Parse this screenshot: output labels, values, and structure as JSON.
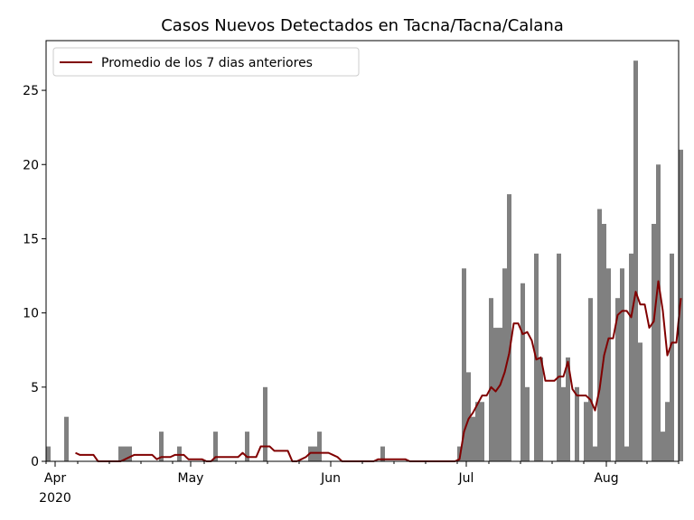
{
  "chart_data": {
    "type": "bar",
    "title": "Casos Nuevos Detectados en Tacna/Tacna/Calana",
    "xlabel": "",
    "ylabel": "",
    "x_start_date": "2020-03-30",
    "x_end_date": "2020-08-16",
    "ylim": [
      0,
      28.35
    ],
    "yticks": [
      0,
      5,
      10,
      15,
      20,
      25
    ],
    "xticks": [
      {
        "date": "2020-04-01",
        "label": "Apr",
        "sublabel": "2020"
      },
      {
        "date": "2020-05-01",
        "label": "May",
        "sublabel": ""
      },
      {
        "date": "2020-06-01",
        "label": "Jun",
        "sublabel": ""
      },
      {
        "date": "2020-07-01",
        "label": "Jul",
        "sublabel": ""
      },
      {
        "date": "2020-08-01",
        "label": "Aug",
        "sublabel": ""
      }
    ],
    "grid": false,
    "legend_position": "top-left",
    "series": [
      {
        "name": "",
        "kind": "bar",
        "color": "#808080",
        "start_date": "2020-03-30",
        "values": [
          1,
          0,
          0,
          0,
          3,
          0,
          0,
          0,
          0,
          0,
          0,
          0,
          0,
          0,
          0,
          0,
          1,
          1,
          1,
          0,
          0,
          0,
          0,
          0,
          0,
          2,
          0,
          0,
          0,
          1,
          0,
          0,
          0,
          0,
          0,
          0,
          0,
          2,
          0,
          0,
          0,
          0,
          0,
          0,
          2,
          0,
          0,
          0,
          5,
          0,
          0,
          0,
          0,
          0,
          0,
          0,
          0,
          0,
          1,
          1,
          2,
          0,
          0,
          0,
          0,
          0,
          0,
          0,
          0,
          0,
          0,
          0,
          0,
          0,
          1,
          0,
          0,
          0,
          0,
          0,
          0,
          0,
          0,
          0,
          0,
          0,
          0,
          0,
          0,
          0,
          0,
          1,
          13,
          6,
          3,
          4,
          4,
          0,
          11,
          9,
          9,
          13,
          18,
          0,
          0,
          12,
          5,
          0,
          14,
          7,
          0,
          0,
          0,
          14,
          5,
          7,
          0,
          5,
          0,
          4,
          11,
          1,
          17,
          16,
          13,
          0,
          11,
          13,
          1,
          14,
          27,
          8,
          0,
          0,
          16,
          20,
          2,
          4,
          14,
          0,
          21
        ]
      },
      {
        "name": "Promedio de los 7 dias anteriores",
        "kind": "line",
        "color": "#800000",
        "start_date": "2020-04-05",
        "values": [
          0.57,
          0.43,
          0.43,
          0.43,
          0.43,
          0.0,
          0.0,
          0.0,
          0.0,
          0.0,
          0.0,
          0.14,
          0.29,
          0.43,
          0.43,
          0.43,
          0.43,
          0.43,
          0.14,
          0.29,
          0.29,
          0.29,
          0.43,
          0.43,
          0.43,
          0.14,
          0.14,
          0.14,
          0.14,
          0.0,
          0.0,
          0.29,
          0.29,
          0.29,
          0.29,
          0.29,
          0.29,
          0.57,
          0.29,
          0.29,
          0.29,
          1.0,
          1.0,
          1.0,
          0.71,
          0.71,
          0.71,
          0.71,
          0.0,
          0.0,
          0.14,
          0.29,
          0.57,
          0.57,
          0.57,
          0.57,
          0.57,
          0.43,
          0.29,
          0.0,
          0.0,
          0.0,
          0.0,
          0.0,
          0.0,
          0.0,
          0.0,
          0.14,
          0.14,
          0.14,
          0.14,
          0.14,
          0.14,
          0.14,
          0.0,
          0.0,
          0.0,
          0.0,
          0.0,
          0.0,
          0.0,
          0.0,
          0.0,
          0.0,
          0.0,
          0.14,
          2.0,
          2.86,
          3.29,
          3.86,
          4.43,
          4.43,
          5.0,
          4.71,
          5.14,
          6.0,
          7.29,
          9.29,
          9.29,
          8.57,
          8.71,
          8.14,
          6.86,
          7.0,
          5.43,
          5.43,
          5.43,
          5.71,
          5.71,
          6.71,
          4.86,
          4.43,
          4.43,
          4.43,
          4.14,
          3.43,
          4.86,
          7.14,
          8.29,
          8.29,
          9.86,
          10.14,
          10.14,
          9.71,
          11.43,
          10.57,
          10.57,
          9.0,
          9.43,
          12.14,
          10.14,
          7.14,
          8.0,
          8.0,
          11.0
        ]
      }
    ]
  }
}
